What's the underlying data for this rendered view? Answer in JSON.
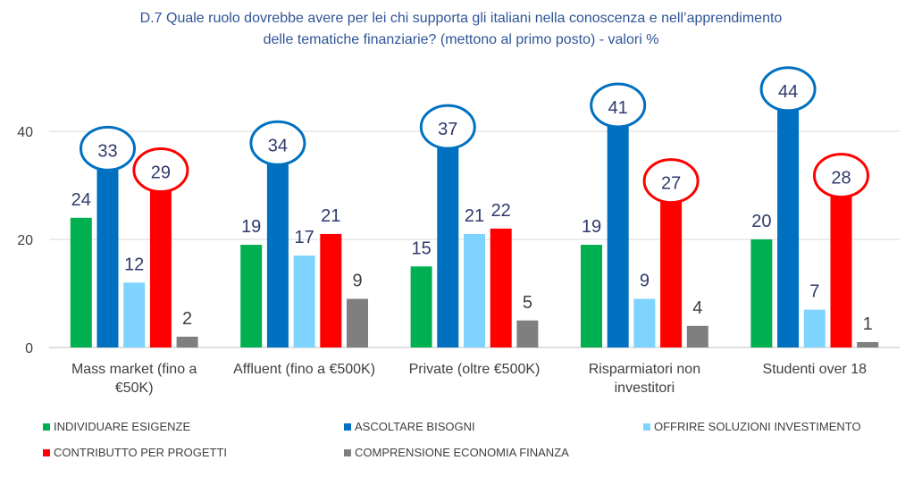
{
  "chart_data": {
    "type": "bar",
    "title_lines": [
      "D.7 Quale ruolo dovrebbe avere per lei chi supporta gli italiani nella conoscenza e nell’apprendimento",
      "delle tematiche finanziarie? (mettono al primo posto) - valori %"
    ],
    "categories": [
      [
        "Mass market (fino a",
        "€50K)"
      ],
      [
        "Affluent (fino a €500K)"
      ],
      [
        "Private (oltre €500K)"
      ],
      [
        "Risparmiatori non",
        "investitori"
      ],
      [
        "Studenti over 18"
      ]
    ],
    "series": [
      {
        "name": "INDIVIDUARE ESIGENZE",
        "color": "#00b050",
        "label_color": "#2f3a6b",
        "values": [
          24,
          19,
          15,
          19,
          20
        ]
      },
      {
        "name": "ASCOLTARE BISOGNI",
        "color": "#0070c0",
        "label_color": "#2f3a6b",
        "values": [
          33,
          34,
          37,
          41,
          44
        ],
        "highlight": "#0070c0"
      },
      {
        "name": "OFFRIRE SOLUZIONI INVESTIMENTO",
        "color": "#7fd3ff",
        "label_color": "#2f3a6b",
        "values": [
          12,
          17,
          21,
          9,
          7
        ]
      },
      {
        "name": "CONTRIBUTTO PER PROGETTI",
        "color": "#ff0000",
        "label_color": "#2f3a6b",
        "values": [
          29,
          21,
          22,
          27,
          28
        ],
        "highlight_indices": [
          0,
          3,
          4
        ],
        "highlight": "#ff0000"
      },
      {
        "name": "COMPRENSIONE ECONOMIA FINANZA",
        "color": "#7f7f7f",
        "label_color": "#404040",
        "values": [
          2,
          9,
          5,
          4,
          1
        ]
      }
    ],
    "yticks": [
      0,
      20,
      40
    ],
    "ylim": [
      0,
      50
    ],
    "grid": true,
    "legend_position": "bottom"
  }
}
